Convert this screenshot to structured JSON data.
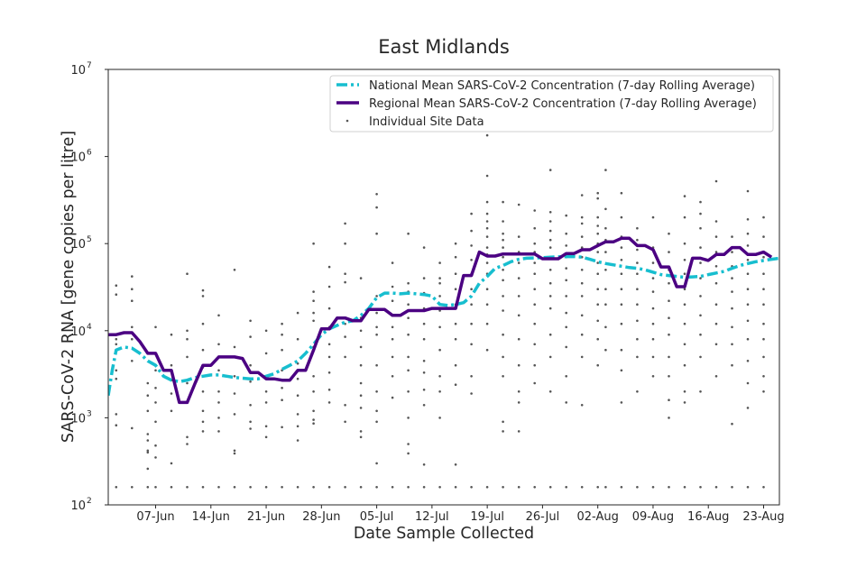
{
  "chart_data": {
    "type": "line",
    "title": "East Midlands",
    "xlabel": "Date Sample Collected",
    "ylabel": "SARS-CoV-2 RNA [gene copies per litre]",
    "yscale": "log",
    "ylim": [
      100,
      10000000
    ],
    "xlim_days": [
      0,
      85
    ],
    "x_unit": "days since 01-Jun",
    "colors": {
      "national": "#17becf",
      "regional": "#4b0082",
      "sites": "#555555",
      "axes": "#262626"
    },
    "x_ticks": [
      {
        "day": 6,
        "label": "07-Jun"
      },
      {
        "day": 13,
        "label": "14-Jun"
      },
      {
        "day": 20,
        "label": "21-Jun"
      },
      {
        "day": 27,
        "label": "28-Jun"
      },
      {
        "day": 34,
        "label": "05-Jul"
      },
      {
        "day": 41,
        "label": "12-Jul"
      },
      {
        "day": 48,
        "label": "19-Jul"
      },
      {
        "day": 55,
        "label": "26-Jul"
      },
      {
        "day": 62,
        "label": "02-Aug"
      },
      {
        "day": 69,
        "label": "09-Aug"
      },
      {
        "day": 76,
        "label": "16-Aug"
      },
      {
        "day": 83,
        "label": "23-Aug"
      }
    ],
    "y_ticks": [
      {
        "value": 100,
        "base": "10",
        "exp": "2"
      },
      {
        "value": 1000,
        "base": "10",
        "exp": "3"
      },
      {
        "value": 10000,
        "base": "10",
        "exp": "4"
      },
      {
        "value": 100000,
        "base": "10",
        "exp": "5"
      },
      {
        "value": 1000000,
        "base": "10",
        "exp": "6"
      },
      {
        "value": 10000000,
        "base": "10",
        "exp": "7"
      }
    ],
    "legend": [
      {
        "key": "national",
        "label": "National Mean SARS-CoV-2 Concentration (7-day Rolling Average)"
      },
      {
        "key": "regional",
        "label": "Regional Mean SARS-CoV-2 Concentration (7-day Rolling Average)"
      },
      {
        "key": "sites",
        "label": "Individual Site Data"
      }
    ],
    "series": [
      {
        "key": "national",
        "name": "National Mean SARS-CoV-2 Concentration (7-day Rolling Average)",
        "style": "dashdot",
        "x": [
          0,
          0.5,
          1,
          2,
          3,
          4,
          5,
          6,
          7,
          8,
          9,
          10,
          11,
          12,
          13,
          14,
          15,
          16,
          17,
          18,
          19,
          20,
          21,
          22,
          23,
          24,
          25,
          26,
          27,
          28,
          29,
          30,
          31,
          32,
          33,
          34,
          35,
          36,
          37,
          38,
          39,
          40,
          41,
          42,
          43,
          44,
          45,
          46,
          47,
          48,
          49,
          50,
          51,
          52,
          53,
          54,
          55,
          56,
          57,
          58,
          59,
          60,
          61,
          62,
          63,
          64,
          65,
          66,
          67,
          68,
          69,
          70,
          71,
          72,
          73,
          74,
          75,
          76,
          77,
          78,
          79,
          80,
          81,
          82,
          83,
          84,
          85
        ],
        "y": [
          1800,
          3500,
          6000,
          6500,
          6300,
          5500,
          4500,
          4000,
          3000,
          2700,
          2600,
          2700,
          2900,
          3000,
          3100,
          3100,
          3000,
          2900,
          2850,
          2800,
          2800,
          3000,
          3200,
          3600,
          4000,
          4500,
          5500,
          7000,
          9000,
          10500,
          11500,
          12500,
          13000,
          15000,
          18000,
          24000,
          27000,
          27000,
          26500,
          27000,
          26500,
          26000,
          25000,
          20000,
          19500,
          20000,
          21000,
          25000,
          35000,
          42000,
          52000,
          56000,
          62000,
          66000,
          68000,
          68500,
          69000,
          70000,
          70500,
          71000,
          71000,
          70000,
          66000,
          62000,
          59000,
          57000,
          55000,
          53000,
          52000,
          50000,
          47000,
          44000,
          43000,
          42000,
          41000,
          41500,
          42000,
          44000,
          46000,
          48000,
          52000,
          56000,
          59000,
          62000,
          64000,
          66000,
          68000
        ]
      },
      {
        "key": "regional",
        "name": "Regional Mean SARS-CoV-2 Concentration (7-day Rolling Average)",
        "style": "solid",
        "x": [
          0,
          1,
          2,
          3,
          4,
          5,
          6,
          7,
          8,
          9,
          10,
          11,
          12,
          13,
          14,
          15,
          16,
          17,
          18,
          19,
          20,
          21,
          22,
          23,
          24,
          25,
          26,
          27,
          28,
          29,
          30,
          31,
          32,
          33,
          34,
          35,
          36,
          37,
          38,
          39,
          40,
          41,
          42,
          43,
          44,
          45,
          46,
          47,
          48,
          49,
          50,
          51,
          52,
          53,
          54,
          55,
          56,
          57,
          58,
          59,
          60,
          61,
          62,
          63,
          64,
          65,
          66,
          67,
          68,
          69,
          70,
          71,
          72,
          73,
          74,
          75,
          76,
          77,
          78,
          79,
          80,
          81,
          82,
          83,
          84
        ],
        "y": [
          9000,
          9000,
          9500,
          9500,
          7500,
          5500,
          5500,
          3500,
          3500,
          1500,
          1500,
          2500,
          4000,
          4000,
          5000,
          5000,
          5000,
          4800,
          3300,
          3300,
          2800,
          2800,
          2700,
          2700,
          3500,
          3500,
          6000,
          10500,
          10500,
          14000,
          14000,
          13000,
          13000,
          17500,
          17500,
          17500,
          15000,
          15000,
          17000,
          17000,
          17000,
          18000,
          18000,
          18000,
          18000,
          43000,
          43000,
          80000,
          72000,
          72000,
          76000,
          76000,
          76000,
          76000,
          76000,
          67000,
          67000,
          67000,
          77000,
          77000,
          85000,
          85000,
          95000,
          105000,
          105000,
          115000,
          115000,
          95000,
          95000,
          85000,
          54000,
          54000,
          32000,
          32000,
          68000,
          68000,
          64000,
          75000,
          75000,
          90000,
          90000,
          75000,
          75000,
          80000,
          70000
        ]
      }
    ],
    "site_points": [
      [
        1,
        [
          33000,
          26000,
          8000,
          7000,
          3500,
          2800,
          1100,
          820,
          160
        ]
      ],
      [
        3,
        [
          42000,
          30000,
          22000,
          11000,
          8000,
          4500,
          760,
          160
        ]
      ],
      [
        5,
        [
          5600,
          2500,
          1800,
          1200,
          650,
          550,
          420,
          400,
          260,
          160
        ]
      ],
      [
        6,
        [
          11000,
          3500,
          2200,
          1500,
          900,
          480,
          350,
          160
        ]
      ],
      [
        8,
        [
          9000,
          4000,
          2700,
          1900,
          1200,
          300,
          160
        ]
      ],
      [
        10,
        [
          45000,
          10000,
          8000,
          5000,
          2500,
          1500,
          600,
          500,
          160
        ]
      ],
      [
        12,
        [
          29000,
          25000,
          12000,
          6000,
          3800,
          2000,
          1200,
          900,
          700,
          160
        ]
      ],
      [
        14,
        [
          15000,
          7000,
          3500,
          2000,
          1500,
          1000,
          700,
          160
        ]
      ],
      [
        16,
        [
          50000,
          6500,
          3000,
          1900,
          1100,
          420,
          390,
          160
        ]
      ],
      [
        18,
        [
          13000,
          8500,
          4000,
          2600,
          1400,
          900,
          750,
          160
        ]
      ],
      [
        20,
        [
          10000,
          5500,
          3000,
          2000,
          1500,
          800,
          600,
          160
        ]
      ],
      [
        22,
        [
          12000,
          9000,
          6000,
          3500,
          2200,
          1600,
          780,
          160
        ]
      ],
      [
        24,
        [
          16000,
          8000,
          4200,
          2800,
          1800,
          1100,
          800,
          550,
          160
        ]
      ],
      [
        26,
        [
          100000,
          28000,
          22000,
          16000,
          13000,
          6500,
          3000,
          2000,
          1200,
          950,
          860,
          160
        ]
      ],
      [
        28,
        [
          54000,
          32000,
          18000,
          11000,
          7000,
          5000,
          3300,
          2100,
          1500,
          160
        ]
      ],
      [
        30,
        [
          170000,
          100000,
          45000,
          36000,
          14000,
          12000,
          8500,
          5000,
          1400,
          900,
          160
        ]
      ],
      [
        32,
        [
          40000,
          14000,
          10000,
          6500,
          4000,
          2500,
          1800,
          1300,
          700,
          600,
          160
        ]
      ],
      [
        34,
        [
          370000,
          260000,
          130000,
          25000,
          16000,
          11000,
          9000,
          4000,
          2000,
          1200,
          900,
          300,
          160
        ]
      ],
      [
        36,
        [
          60000,
          32000,
          22000,
          15000,
          11000,
          8000,
          5000,
          3000,
          1700,
          160
        ]
      ],
      [
        38,
        [
          130000,
          35000,
          28000,
          20000,
          14000,
          9000,
          5000,
          3500,
          2000,
          1000,
          500,
          390,
          160
        ]
      ],
      [
        40,
        [
          90000,
          40000,
          27000,
          18000,
          12000,
          8000,
          4500,
          3300,
          2100,
          1400,
          290,
          160
        ]
      ],
      [
        42,
        [
          60000,
          40000,
          35000,
          25000,
          17000,
          11000,
          6000,
          3000,
          2000,
          1000,
          160
        ]
      ],
      [
        44,
        [
          100000,
          70000,
          45000,
          30000,
          20000,
          12000,
          8000,
          4000,
          2400,
          290,
          160
        ]
      ],
      [
        46,
        [
          220000,
          140000,
          95000,
          65000,
          45000,
          30000,
          20000,
          12000,
          7000,
          3000,
          1900,
          160
        ]
      ],
      [
        48,
        [
          1750000,
          600000,
          300000,
          220000,
          180000,
          150000,
          120000,
          90000,
          75000,
          60000,
          45000,
          30000,
          20000,
          12000,
          6000,
          160
        ]
      ],
      [
        50,
        [
          300000,
          180000,
          130000,
          110000,
          90000,
          70000,
          50000,
          38000,
          25000,
          17000,
          9000,
          5000,
          3000,
          900,
          700,
          160
        ]
      ],
      [
        52,
        [
          280000,
          120000,
          80000,
          60000,
          40000,
          25000,
          15000,
          8000,
          4000,
          2000,
          1500,
          700,
          160
        ]
      ],
      [
        54,
        [
          240000,
          150000,
          100000,
          80000,
          60000,
          45000,
          30000,
          20000,
          12000,
          7000,
          4000,
          2500,
          160
        ]
      ],
      [
        56,
        [
          700000,
          230000,
          180000,
          140000,
          110000,
          90000,
          70000,
          50000,
          35000,
          25000,
          18000,
          9000,
          5000,
          2000,
          160
        ]
      ],
      [
        58,
        [
          210000,
          130000,
          95000,
          70000,
          52000,
          38000,
          25000,
          16000,
          11000,
          6500,
          3000,
          1500,
          160
        ]
      ],
      [
        60,
        [
          360000,
          200000,
          170000,
          120000,
          90000,
          70000,
          50000,
          35000,
          25000,
          15000,
          9000,
          5000,
          1400,
          160
        ]
      ],
      [
        62,
        [
          380000,
          330000,
          200000,
          160000,
          130000,
          100000,
          80000,
          60000,
          45000,
          30000,
          20000,
          13000,
          8000,
          4000,
          160
        ]
      ],
      [
        63,
        [
          700000,
          250000,
          150000,
          110000,
          80000,
          50000,
          30000,
          20000,
          11000,
          6000,
          160
        ]
      ],
      [
        65,
        [
          380000,
          200000,
          120000,
          90000,
          65000,
          45000,
          30000,
          20000,
          12000,
          6000,
          3500,
          1500,
          160
        ]
      ],
      [
        67,
        [
          150000,
          110000,
          85000,
          60000,
          45000,
          30000,
          20000,
          13000,
          8000,
          5000,
          2000,
          160
        ]
      ],
      [
        69,
        [
          200000,
          90000,
          60000,
          40000,
          28000,
          18000,
          12000,
          8000,
          5000,
          3000,
          160
        ]
      ],
      [
        71,
        [
          130000,
          80000,
          50000,
          35000,
          22000,
          14000,
          9000,
          5000,
          3000,
          1600,
          1000,
          160
        ]
      ],
      [
        73,
        [
          350000,
          200000,
          100000,
          65000,
          45000,
          30000,
          20000,
          12000,
          7000,
          4000,
          2000,
          1500,
          160
        ]
      ],
      [
        75,
        [
          300000,
          220000,
          150000,
          90000,
          60000,
          40000,
          25000,
          15000,
          9000,
          5000,
          2000,
          160
        ]
      ],
      [
        77,
        [
          520000,
          180000,
          120000,
          80000,
          55000,
          35000,
          20000,
          12000,
          7000,
          3000,
          160
        ]
      ],
      [
        79,
        [
          120000,
          80000,
          55000,
          40000,
          28000,
          18000,
          11000,
          7000,
          4000,
          850,
          160
        ]
      ],
      [
        81,
        [
          400000,
          190000,
          130000,
          95000,
          65000,
          45000,
          30000,
          20000,
          13000,
          8000,
          4500,
          2500,
          1300,
          160
        ]
      ],
      [
        83,
        [
          200000,
          120000,
          70000,
          45000,
          30000,
          20000,
          12000,
          8000,
          5000,
          3000,
          2000,
          160
        ]
      ]
    ]
  }
}
